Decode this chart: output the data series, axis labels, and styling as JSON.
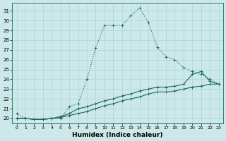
{
  "xlabel": "Humidex (Indice chaleur)",
  "background_color": "#cce8e8",
  "grid_color": "#b0d8d8",
  "line_color": "#1a6b5a",
  "xlim": [
    -0.5,
    23.5
  ],
  "ylim": [
    19.5,
    31.8
  ],
  "xticks": [
    0,
    1,
    2,
    3,
    4,
    5,
    6,
    7,
    8,
    9,
    10,
    11,
    12,
    13,
    14,
    15,
    16,
    17,
    18,
    19,
    20,
    21,
    22,
    23
  ],
  "yticks": [
    20,
    21,
    22,
    23,
    24,
    25,
    26,
    27,
    28,
    29,
    30,
    31
  ],
  "curve1_x": [
    0,
    1,
    2,
    3,
    4,
    5,
    6,
    7,
    8,
    9,
    10,
    11,
    12,
    13,
    14,
    15,
    16,
    17,
    18,
    19,
    20,
    21,
    22,
    23
  ],
  "curve1_y": [
    20.5,
    20.0,
    19.9,
    19.9,
    20.0,
    20.0,
    21.2,
    21.5,
    24.0,
    27.2,
    29.5,
    29.5,
    29.5,
    30.5,
    31.3,
    29.8,
    27.3,
    26.3,
    26.0,
    25.2,
    24.8,
    24.5,
    24.0,
    23.5
  ],
  "curve2_x": [
    0,
    1,
    2,
    3,
    4,
    5,
    6,
    7,
    8,
    9,
    10,
    11,
    12,
    13,
    14,
    15,
    16,
    17,
    18,
    19,
    20,
    21,
    22,
    23
  ],
  "curve2_y": [
    20.0,
    20.0,
    19.9,
    19.9,
    20.0,
    20.2,
    20.5,
    21.0,
    21.2,
    21.5,
    21.8,
    22.0,
    22.3,
    22.5,
    22.8,
    23.0,
    23.2,
    23.2,
    23.3,
    23.5,
    24.5,
    24.8,
    23.8,
    23.5
  ],
  "curve3_x": [
    0,
    1,
    2,
    3,
    4,
    5,
    6,
    7,
    8,
    9,
    10,
    11,
    12,
    13,
    14,
    15,
    16,
    17,
    18,
    19,
    20,
    21,
    22,
    23
  ],
  "curve3_y": [
    20.0,
    20.0,
    19.9,
    19.9,
    20.0,
    20.1,
    20.3,
    20.5,
    20.7,
    21.0,
    21.3,
    21.5,
    21.8,
    22.0,
    22.2,
    22.5,
    22.7,
    22.7,
    22.8,
    23.0,
    23.2,
    23.3,
    23.5,
    23.5
  ]
}
